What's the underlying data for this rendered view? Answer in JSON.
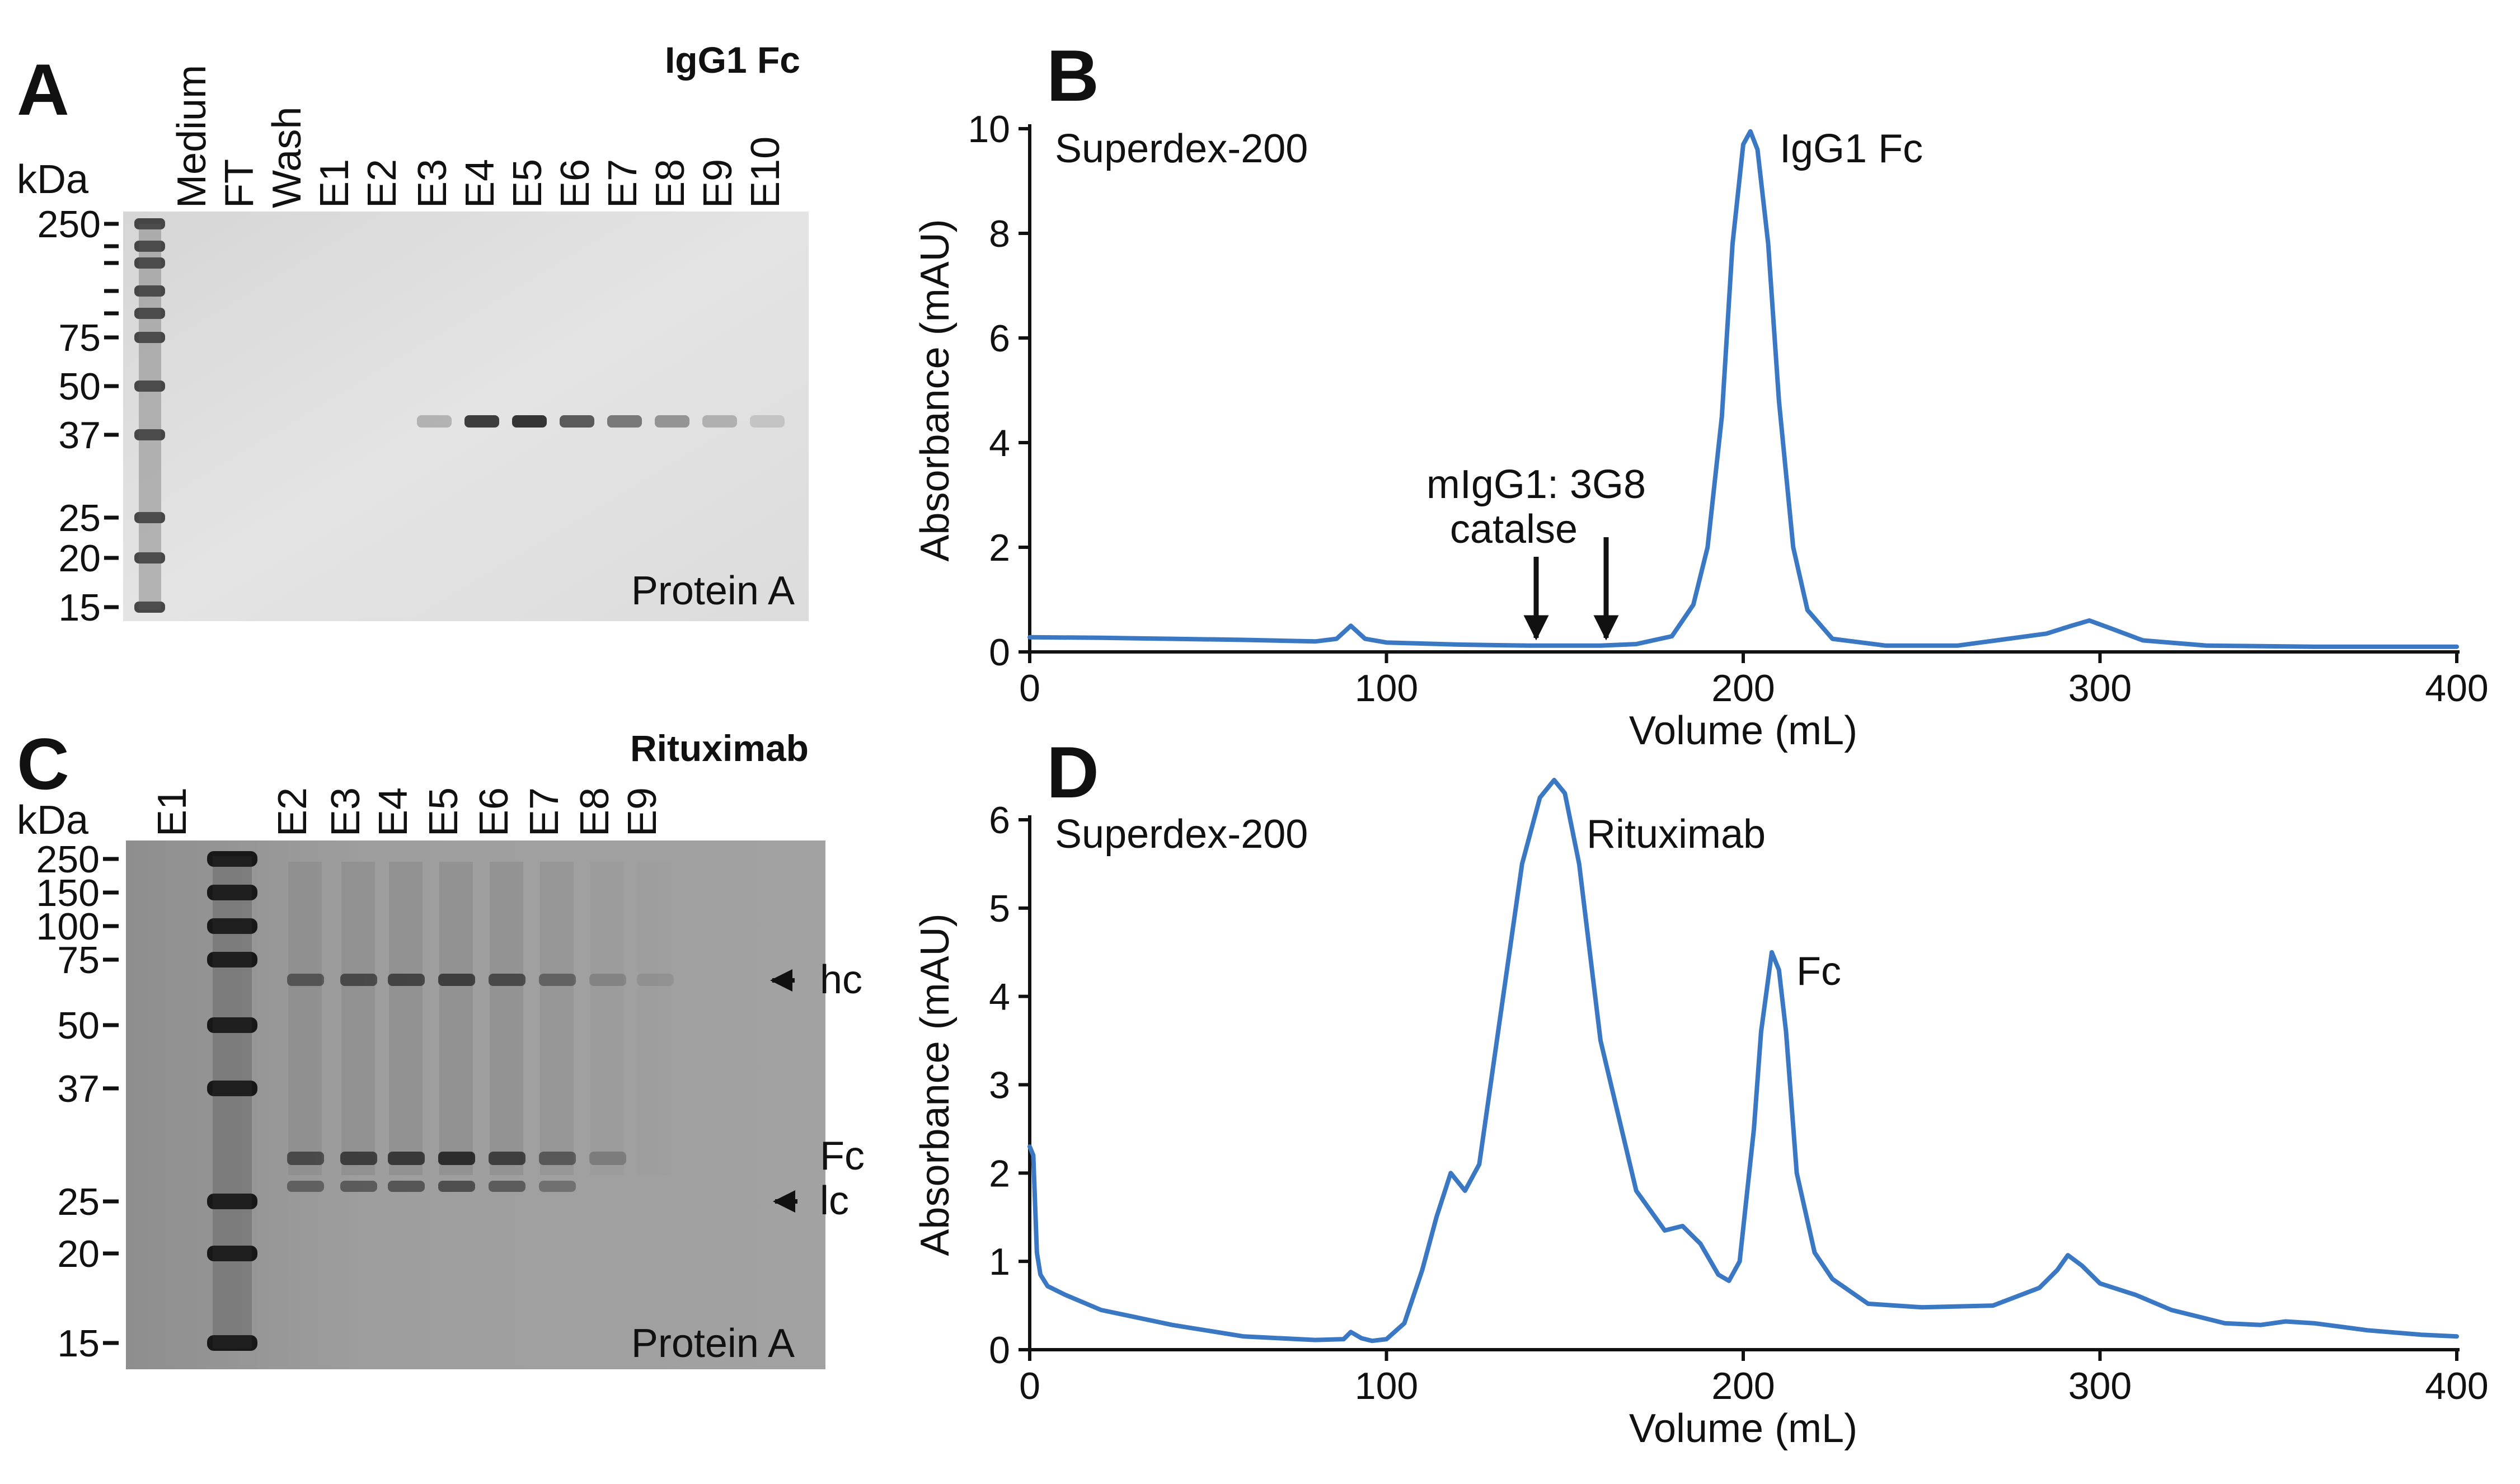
{
  "panels": {
    "A": {
      "label": "A",
      "title": "IgG1 Fc",
      "kda_label": "kDa",
      "lanes": [
        "Medium",
        "FT",
        "Wash",
        "E1",
        "E2",
        "E3",
        "E4",
        "E5",
        "E6",
        "E7",
        "E8",
        "E9",
        "E10"
      ],
      "markers": [
        "250",
        "75",
        "50",
        "37",
        "25",
        "20",
        "15"
      ],
      "caption": "Protein A"
    },
    "B": {
      "label": "B",
      "note": "Superdex-200",
      "peak_label": "IgG1 Fc",
      "arrow_text_1": "mIgG1: 3G8",
      "arrow_text_2": "catalse"
    },
    "C": {
      "label": "C",
      "title": "Rituximab",
      "kda_label": "kDa",
      "lanes": [
        "E1",
        "E2",
        "E3",
        "E4",
        "E5",
        "E6",
        "E7",
        "E8",
        "E9"
      ],
      "markers": [
        "250",
        "150",
        "100",
        "75",
        "50",
        "37",
        "25",
        "20",
        "15"
      ],
      "annotations": {
        "hc": "hc",
        "fc": "Fc",
        "lc": "lc"
      },
      "caption": "Protein A"
    },
    "D": {
      "label": "D",
      "note": "Superdex-200",
      "peak1_label": "Rituximab",
      "peak2_label": "Fc"
    }
  },
  "chart_data": [
    {
      "id": "B",
      "type": "line",
      "title": "",
      "xlabel": "Volume (mL)",
      "ylabel": "Absorbance (mAU)",
      "xlim": [
        0,
        400
      ],
      "ylim": [
        0,
        10
      ],
      "xticks": [
        "0",
        "100",
        "200",
        "300",
        "400"
      ],
      "yticks": [
        "0",
        "2",
        "4",
        "6",
        "8",
        "10"
      ],
      "series": [
        {
          "name": "IgG1 Fc",
          "color": "#3a78c4",
          "x": [
            0,
            20,
            40,
            60,
            80,
            86,
            90,
            94,
            100,
            120,
            140,
            160,
            170,
            180,
            186,
            190,
            194,
            197,
            200,
            202,
            204,
            207,
            210,
            214,
            218,
            225,
            240,
            260,
            285,
            292,
            297,
            303,
            312,
            330,
            360,
            400
          ],
          "y": [
            0.28,
            0.27,
            0.25,
            0.23,
            0.2,
            0.25,
            0.5,
            0.25,
            0.18,
            0.14,
            0.12,
            0.12,
            0.15,
            0.3,
            0.9,
            2.0,
            4.5,
            7.8,
            9.7,
            9.95,
            9.6,
            7.8,
            4.8,
            2.0,
            0.8,
            0.25,
            0.12,
            0.12,
            0.35,
            0.5,
            0.6,
            0.45,
            0.22,
            0.12,
            0.1,
            0.1
          ]
        }
      ],
      "annotations": [
        {
          "text": "IgG1 Fc",
          "x": 201,
          "y": 9.95
        },
        {
          "text": "mIgG1: 3G8",
          "x": 160,
          "y": 0.2
        },
        {
          "text": "catalse",
          "x": 140,
          "y": 0.2
        }
      ]
    },
    {
      "id": "D",
      "type": "line",
      "title": "",
      "xlabel": "Volume (mL)",
      "ylabel": "Absorbance (mAU)",
      "xlim": [
        0,
        400
      ],
      "ylim": [
        0,
        6
      ],
      "xticks": [
        "0",
        "100",
        "200",
        "300",
        "400"
      ],
      "yticks": [
        "0",
        "1",
        "2",
        "3",
        "4",
        "5",
        "6"
      ],
      "series": [
        {
          "name": "Rituximab",
          "color": "#3a78c4",
          "x": [
            0,
            1,
            2,
            3,
            5,
            10,
            20,
            40,
            60,
            80,
            88,
            90,
            93,
            96,
            100,
            105,
            110,
            114,
            118,
            122,
            126,
            132,
            138,
            143,
            147,
            150,
            154,
            160,
            170,
            178,
            183,
            188,
            193,
            196,
            199,
            203,
            205,
            208,
            210,
            212,
            215,
            220,
            225,
            235,
            250,
            270,
            283,
            288,
            291,
            295,
            300,
            310,
            320,
            335,
            345,
            352,
            360,
            375,
            390,
            400
          ],
          "y": [
            2.3,
            2.2,
            1.1,
            0.85,
            0.72,
            0.62,
            0.45,
            0.28,
            0.15,
            0.11,
            0.12,
            0.2,
            0.13,
            0.1,
            0.12,
            0.3,
            0.9,
            1.5,
            2.0,
            1.8,
            2.1,
            3.8,
            5.5,
            6.25,
            6.45,
            6.3,
            5.5,
            3.5,
            1.8,
            1.35,
            1.4,
            1.2,
            0.85,
            0.78,
            1.0,
            2.5,
            3.6,
            4.5,
            4.3,
            3.6,
            2.0,
            1.1,
            0.8,
            0.52,
            0.48,
            0.5,
            0.7,
            0.9,
            1.07,
            0.95,
            0.75,
            0.62,
            0.45,
            0.3,
            0.28,
            0.32,
            0.3,
            0.22,
            0.17,
            0.15
          ]
        }
      ],
      "annotations": [
        {
          "text": "Rituximab",
          "x": 147,
          "y": 6.45
        },
        {
          "text": "Fc",
          "x": 208,
          "y": 4.5
        }
      ]
    }
  ]
}
